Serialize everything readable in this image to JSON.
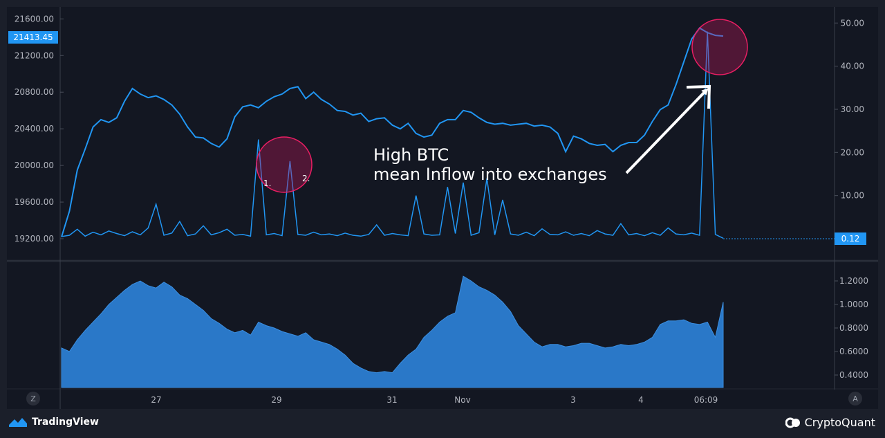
{
  "chart_data": {
    "type": "line",
    "price_axis": {
      "ticks": [
        "21600.00",
        "21200.00",
        "20800.00",
        "20400.00",
        "20000.00",
        "19600.00",
        "19200.00"
      ],
      "tick_values": [
        21600,
        21200,
        20800,
        20400,
        20000,
        19600,
        19200
      ],
      "current_label": "21413.45",
      "current_value": 21413.45
    },
    "inflow_axis": {
      "ticks": [
        "50.00",
        "40.00",
        "30.00",
        "20.00",
        "10.00"
      ],
      "tick_values": [
        50,
        40,
        30,
        20,
        10
      ],
      "current_label": "0.12",
      "current_value": 0.12
    },
    "lower_axis": {
      "ticks": [
        "1.2000",
        "1.0000",
        "0.8000",
        "0.6000",
        "0.4000"
      ],
      "tick_values": [
        1.2,
        1.0,
        0.8,
        0.6,
        0.4
      ]
    },
    "time_axis": {
      "labels": [
        "27",
        "29",
        "31",
        "Nov",
        "3",
        "4",
        "06:09"
      ]
    },
    "series": [
      {
        "kind": "price",
        "color": "#2196f3",
        "values": [
          19220,
          19500,
          19950,
          20180,
          20420,
          20500,
          20470,
          20520,
          20700,
          20840,
          20780,
          20740,
          20760,
          20720,
          20660,
          20560,
          20420,
          20310,
          20300,
          20240,
          20200,
          20290,
          20530,
          20640,
          20660,
          20630,
          20700,
          20750,
          20780,
          20840,
          20860,
          20730,
          20800,
          20720,
          20670,
          20600,
          20590,
          20550,
          20570,
          20480,
          20510,
          20520,
          20440,
          20400,
          20460,
          20350,
          20310,
          20330,
          20460,
          20500,
          20500,
          20600,
          20580,
          20520,
          20470,
          20450,
          20460,
          20440,
          20450,
          20460,
          20430,
          20440,
          20420,
          20350,
          20150,
          20320,
          20290,
          20240,
          20220,
          20230,
          20150,
          20220,
          20250,
          20250,
          20330,
          20480,
          20610,
          20660,
          20880,
          21130,
          21380,
          21500,
          21450,
          21420,
          21413
        ]
      },
      {
        "kind": "inflow_mean",
        "color": "#2196f3",
        "values": [
          0.5,
          0.8,
          2.2,
          0.6,
          1.5,
          0.9,
          1.8,
          1.2,
          0.7,
          1.6,
          0.9,
          2.5,
          8.0,
          0.8,
          1.3,
          4.0,
          0.7,
          1.1,
          3.0,
          0.9,
          1.4,
          2.2,
          0.8,
          1.0,
          0.6,
          23.0,
          0.9,
          1.2,
          0.7,
          18.0,
          1.0,
          0.8,
          1.5,
          0.9,
          1.1,
          0.7,
          1.3,
          0.8,
          0.6,
          1.0,
          3.2,
          0.8,
          1.2,
          0.9,
          0.7,
          10.0,
          1.1,
          0.8,
          0.9,
          12.0,
          1.2,
          13.0,
          0.8,
          1.4,
          14.0,
          0.9,
          9.0,
          1.1,
          0.8,
          1.5,
          0.7,
          2.3,
          1.0,
          0.9,
          1.6,
          0.8,
          1.2,
          0.7,
          1.9,
          1.1,
          0.8,
          3.5,
          0.9,
          1.2,
          0.7,
          1.4,
          0.8,
          2.5,
          1.1,
          0.9,
          1.3,
          0.8,
          48.0,
          1.0,
          0.12
        ]
      },
      {
        "kind": "lower_indicator",
        "color": "#2a78c8",
        "values": [
          0.63,
          0.6,
          0.7,
          0.78,
          0.85,
          0.92,
          1.0,
          1.06,
          1.12,
          1.17,
          1.2,
          1.16,
          1.14,
          1.19,
          1.15,
          1.08,
          1.05,
          1.0,
          0.95,
          0.88,
          0.84,
          0.79,
          0.76,
          0.78,
          0.74,
          0.85,
          0.82,
          0.8,
          0.77,
          0.75,
          0.73,
          0.76,
          0.7,
          0.68,
          0.66,
          0.62,
          0.57,
          0.5,
          0.46,
          0.43,
          0.42,
          0.43,
          0.42,
          0.5,
          0.57,
          0.62,
          0.72,
          0.78,
          0.85,
          0.9,
          0.93,
          1.24,
          1.2,
          1.15,
          1.12,
          1.08,
          1.02,
          0.94,
          0.82,
          0.75,
          0.68,
          0.64,
          0.66,
          0.66,
          0.64,
          0.65,
          0.67,
          0.67,
          0.65,
          0.63,
          0.64,
          0.66,
          0.65,
          0.66,
          0.68,
          0.72,
          0.83,
          0.86,
          0.86,
          0.87,
          0.84,
          0.83,
          0.85,
          0.72,
          1.02
        ]
      }
    ],
    "annotations": [
      {
        "type": "circle",
        "labels": [
          "1.",
          "2."
        ]
      },
      {
        "type": "circle",
        "labels": []
      },
      {
        "type": "text",
        "lines": [
          "High BTC",
          "mean Inflow into exchanges"
        ]
      },
      {
        "type": "arrow"
      }
    ],
    "colors": {
      "background": "#131722",
      "frame": "#1b1f2a",
      "line": "#2196f3",
      "area": "#2a78c8",
      "highlight_circle": "#c2185b",
      "grid": "#2a2e39",
      "axis_text": "#b2b5be"
    }
  },
  "corner_buttons": {
    "left": "Z",
    "right": "A"
  },
  "footer": {
    "tradingview": "TradingView",
    "tradingview_icon": "tradingview-logo-icon",
    "cryptoquant": "CryptoQuant",
    "cryptoquant_icon": "cryptoquant-logo-icon"
  }
}
